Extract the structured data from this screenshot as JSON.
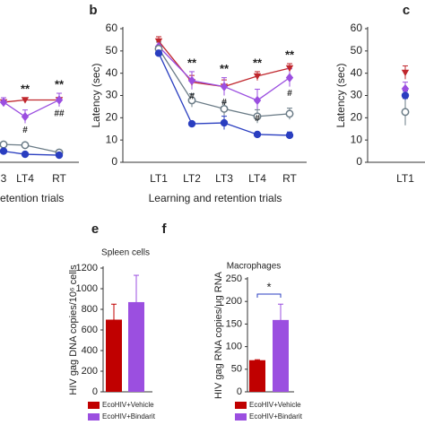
{
  "chart_data": [
    {
      "type": "line",
      "x_label": "etention trials",
      "categories": [
        "3",
        "LT4",
        "RT"
      ],
      "ylim": [
        0,
        60
      ],
      "series": [
        {
          "color": "#c0272d",
          "marker": "triangle-down",
          "values": [
            27,
            28,
            28
          ],
          "errors": [
            1,
            1,
            1
          ]
        },
        {
          "color": "#9b4fe0",
          "marker": "diamond",
          "values": [
            27,
            20.5,
            28
          ],
          "errors": [
            2,
            3,
            3
          ]
        },
        {
          "color": "#6a7b86",
          "marker": "open-circle",
          "values": [
            8,
            7.7,
            4.4
          ],
          "errors": [
            1,
            1,
            1
          ]
        },
        {
          "color": "#2a3ec0",
          "marker": "circle",
          "values": [
            5,
            3.6,
            3.2
          ],
          "errors": [
            1,
            1,
            1
          ]
        }
      ],
      "annotations": [
        {
          "text": "**",
          "category": "LT4"
        },
        {
          "text": "#",
          "category": "LT4"
        },
        {
          "text": "**",
          "category": "RT"
        },
        {
          "text": "##",
          "category": "RT"
        }
      ]
    },
    {
      "type": "line",
      "panel": "b",
      "y_label": "Latency (sec)",
      "x_label": "Learning and retention trials",
      "categories": [
        "LT1",
        "LT2",
        "LT3",
        "LT4",
        "RT"
      ],
      "ylim": [
        0,
        60
      ],
      "yticks": [
        0,
        10,
        20,
        30,
        40,
        50,
        60
      ],
      "series": [
        {
          "color": "#c0272d",
          "marker": "triangle-down",
          "values": [
            54.4,
            36,
            34,
            38.7,
            42.3
          ],
          "errors": [
            2,
            3,
            3,
            2,
            2
          ]
        },
        {
          "color": "#9b4fe0",
          "marker": "diamond",
          "values": [
            52,
            36.7,
            34,
            27.8,
            38
          ],
          "errors": [
            2,
            4,
            4,
            5,
            4
          ]
        },
        {
          "color": "#6a7b86",
          "marker": "open-circle",
          "values": [
            51,
            27.8,
            24,
            20.6,
            21.8
          ],
          "errors": [
            3,
            3,
            3,
            3,
            2.5
          ]
        },
        {
          "color": "#2a3ec0",
          "marker": "circle",
          "values": [
            49,
            17.3,
            17.7,
            12.5,
            12.1
          ],
          "errors": [
            1,
            1,
            3,
            1,
            1.5
          ]
        }
      ],
      "annotations": [
        {
          "text": "**",
          "category": "LT2"
        },
        {
          "text": "#",
          "category": "LT2"
        },
        {
          "text": "**",
          "category": "LT3"
        },
        {
          "text": "#",
          "category": "LT3"
        },
        {
          "text": "**",
          "category": "LT4"
        },
        {
          "text": "#",
          "category": "LT4"
        },
        {
          "text": "**",
          "category": "RT"
        },
        {
          "text": "#",
          "category": "RT"
        }
      ]
    },
    {
      "type": "line",
      "panel": "c",
      "y_label": "Latency (sec)",
      "categories": [
        "LT1"
      ],
      "ylim": [
        0,
        60
      ],
      "yticks": [
        0,
        10,
        20,
        30,
        40,
        50,
        60
      ],
      "series": [
        {
          "color": "#c0272d",
          "marker": "triangle-down",
          "values": [
            40.3
          ],
          "errors": [
            3
          ]
        },
        {
          "color": "#9b4fe0",
          "marker": "diamond",
          "values": [
            33
          ],
          "errors": [
            3
          ]
        },
        {
          "color": "#6a7b86",
          "marker": "open-circle",
          "values": [
            22.6
          ],
          "errors": [
            6
          ]
        },
        {
          "color": "#2a3ec0",
          "marker": "circle",
          "values": [
            30
          ],
          "errors": [
            2
          ]
        }
      ],
      "annotations": []
    },
    {
      "type": "bar",
      "panel": "e",
      "title": "Spleen cells",
      "y_label": "HIV gag DNA copies/10⁶ cells",
      "ylim": [
        0,
        1200
      ],
      "yticks": [
        0,
        200,
        400,
        600,
        800,
        1000,
        1200
      ],
      "series": [
        {
          "name": "EcoHIV+Vehicle",
          "color": "#c00000",
          "values": [
            700
          ],
          "errors": [
            150
          ]
        },
        {
          "name": "EcoHIV+Bindarit",
          "color": "#9b4fe0",
          "values": [
            870
          ],
          "errors": [
            260
          ]
        }
      ],
      "annotations": []
    },
    {
      "type": "bar",
      "panel": "f",
      "title": "Macrophages",
      "y_label": "HIV gag RNA copies/μg RNA",
      "ylim": [
        0,
        250
      ],
      "yticks": [
        0,
        50,
        100,
        150,
        200,
        250
      ],
      "series": [
        {
          "name": "EcoHIV+Vehicle",
          "color": "#c00000",
          "values": [
            70
          ],
          "errors": [
            1
          ]
        },
        {
          "name": "EcoHIV+Bindarit",
          "color": "#9b4fe0",
          "values": [
            159
          ],
          "errors": [
            35
          ]
        }
      ],
      "annotations": [
        {
          "text": "*"
        }
      ]
    }
  ]
}
